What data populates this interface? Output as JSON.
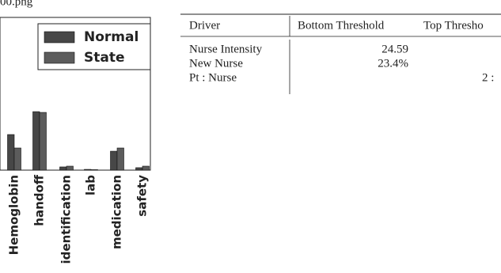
{
  "file_name": "00.png",
  "chart_data": {
    "type": "bar",
    "categories": [
      "Hemoglobin",
      "handoff",
      "identification",
      "lab",
      "medication",
      "safety"
    ],
    "series": [
      {
        "name": "Normal",
        "color": "#474747",
        "values": [
          23.3,
          38.3,
          2.1,
          0.5,
          12.4,
          1.6
        ]
      },
      {
        "name": "State",
        "color": "#5c5c5c",
        "values": [
          14.5,
          37.8,
          2.6,
          0.3,
          14.5,
          2.6
        ]
      }
    ],
    "ylim": [
      0,
      100
    ]
  },
  "table": {
    "header": [
      "Driver",
      "Bottom Threshold",
      "Top Thresho"
    ],
    "rows": [
      [
        "Nurse Intensity",
        "24.59",
        ""
      ],
      [
        "New Nurse",
        "23.4%",
        ""
      ],
      [
        "Pt : Nurse",
        "",
        "2 :"
      ]
    ]
  }
}
